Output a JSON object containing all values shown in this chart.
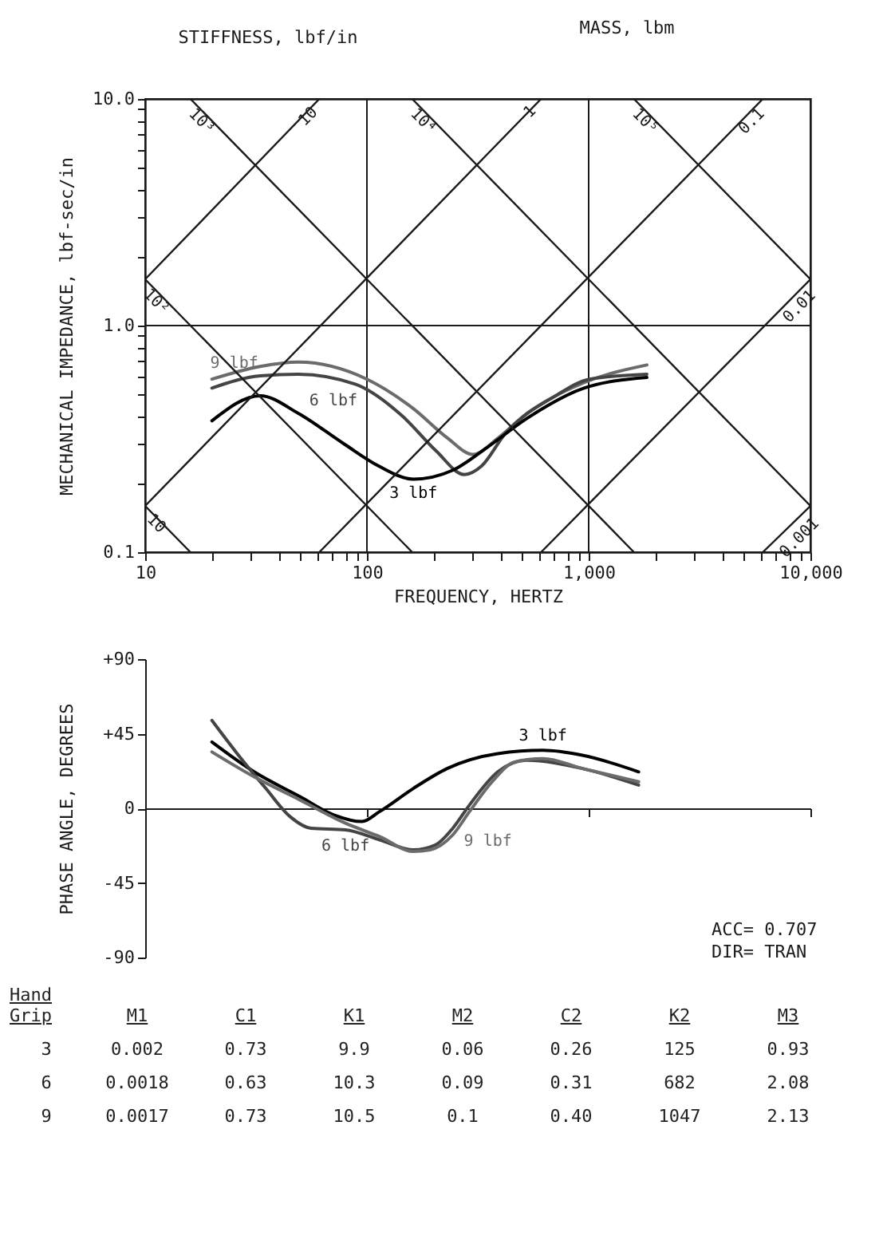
{
  "chart_data": [
    {
      "type": "line",
      "xlabel": "FREQUENCY, HERTZ",
      "ylabel": "MECHANICAL IMPEDANCE, lbf-sec/in",
      "log": "xy",
      "grid": true,
      "xlim": [
        10,
        10000
      ],
      "ylim": [
        0.1,
        10
      ],
      "xticks": [
        10,
        {
          "value": 20,
          "label": null
        },
        {
          "value": 30,
          "label": null
        },
        {
          "value": 40,
          "label": null
        },
        {
          "value": 50,
          "label": null
        },
        {
          "value": 60,
          "label": null
        },
        {
          "value": 70,
          "label": null
        },
        {
          "value": 80,
          "label": null
        },
        {
          "value": 90,
          "label": null
        },
        100,
        {
          "value": 200,
          "label": null
        },
        {
          "value": 300,
          "label": null
        },
        {
          "value": 400,
          "label": null
        },
        {
          "value": 500,
          "label": null
        },
        {
          "value": 600,
          "label": null
        },
        {
          "value": 700,
          "label": null
        },
        {
          "value": 800,
          "label": null
        },
        {
          "value": 900,
          "label": null
        },
        {
          "value": 1000,
          "label": "1,000"
        },
        {
          "value": 2000,
          "label": null
        },
        {
          "value": 3000,
          "label": null
        },
        {
          "value": 4000,
          "label": null
        },
        {
          "value": 5000,
          "label": null
        },
        {
          "value": 6000,
          "label": null
        },
        {
          "value": 7000,
          "label": null
        },
        {
          "value": 8000,
          "label": null
        },
        {
          "value": 9000,
          "label": null
        },
        {
          "value": 10000,
          "label": "10,000"
        }
      ],
      "yticks": [
        0.1,
        {
          "value": 0.2,
          "label": null
        },
        {
          "value": 0.3,
          "label": null
        },
        {
          "value": 0.4,
          "label": null
        },
        {
          "value": 0.5,
          "label": null
        },
        {
          "value": 0.6,
          "label": null
        },
        {
          "value": 0.7,
          "label": null
        },
        {
          "value": 0.8,
          "label": null
        },
        {
          "value": 0.9,
          "label": null
        },
        {
          "value": 1,
          "label": "1.0"
        },
        {
          "value": 2,
          "label": null
        },
        {
          "value": 3,
          "label": null
        },
        {
          "value": 4,
          "label": null
        },
        {
          "value": 5,
          "label": null
        },
        {
          "value": 6,
          "label": null
        },
        {
          "value": 7,
          "label": null
        },
        {
          "value": 8,
          "label": null
        },
        {
          "value": 9,
          "label": null
        },
        {
          "value": 10,
          "label": "10.0"
        }
      ],
      "annotations": [
        "STIFFNESS, lbf/in",
        "MASS, lbm"
      ],
      "series": [
        {
          "name": "9 lbf",
          "color": "#6b6b6b",
          "x": [
            20,
            33,
            49,
            100,
            162,
            230,
            301,
            392,
            528,
            953,
            1830
          ],
          "values": [
            0.58,
            0.66,
            0.69,
            0.58,
            0.43,
            0.32,
            0.27,
            0.32,
            0.41,
            0.56,
            0.67
          ]
        },
        {
          "name": "6 lbf",
          "color": "#444444",
          "x": [
            20,
            33,
            49,
            89,
            144,
            205,
            275,
            329,
            417,
            710,
            1010,
            1830
          ],
          "values": [
            0.53,
            0.6,
            0.61,
            0.55,
            0.4,
            0.28,
            0.22,
            0.24,
            0.33,
            0.49,
            0.58,
            0.61
          ]
        },
        {
          "name": "3 lbf",
          "color": "#000000",
          "x": [
            20,
            33,
            49,
            79,
            113,
            162,
            244,
            349,
            528,
            953,
            1830
          ],
          "values": [
            0.38,
            0.49,
            0.41,
            0.3,
            0.24,
            0.21,
            0.23,
            0.29,
            0.39,
            0.53,
            0.59
          ]
        },
        {
          "name": "10",
          "color": "#1a1a1a",
          "x": [
            10,
            16
          ],
          "values": [
            0.16,
            0.1
          ]
        },
        {
          "name": "10²",
          "color": "#1a1a1a",
          "x": [
            10,
            160
          ],
          "values": [
            1.6,
            0.1
          ]
        },
        {
          "name": "10³",
          "color": "#1a1a1a",
          "x": [
            16,
            1600
          ],
          "values": [
            10,
            0.1
          ]
        },
        {
          "name": "10⁴",
          "color": "#1a1a1a",
          "x": [
            160,
            10000
          ],
          "values": [
            10,
            0.16
          ]
        },
        {
          "name": "10⁵",
          "color": "#1a1a1a",
          "x": [
            1600,
            10000
          ],
          "values": [
            10,
            1.6
          ]
        },
        {
          "name": "10",
          "color": "#1a1a1a",
          "x": [
            10,
            61
          ],
          "values": [
            1.6,
            10
          ]
        },
        {
          "name": "1",
          "color": "#1a1a1a",
          "x": [
            10,
            610
          ],
          "values": [
            0.16,
            10
          ]
        },
        {
          "name": "0.1",
          "color": "#1a1a1a",
          "x": [
            61,
            6100
          ],
          "values": [
            0.1,
            10
          ]
        },
        {
          "name": "0.01",
          "color": "#1a1a1a",
          "x": [
            610,
            10000
          ],
          "values": [
            0.1,
            1.6
          ]
        },
        {
          "name": "0.001",
          "color": "#1a1a1a",
          "x": [
            6100,
            10000
          ],
          "values": [
            0.1,
            0.16
          ]
        }
      ]
    },
    {
      "type": "line",
      "ylabel": "PHASE ANGLE, DEGREES",
      "log": "x",
      "tick_labels": "y",
      "xlim": [
        10,
        10000
      ],
      "ylim": [
        -90,
        90
      ],
      "xticks": [
        {
          "value": 100,
          "label": null
        },
        {
          "value": 1000,
          "label": null
        },
        {
          "value": 10000,
          "label": null
        }
      ],
      "yticks": [
        {
          "value": 90,
          "label": "+90"
        },
        {
          "value": 45,
          "label": "+45"
        },
        0,
        -45,
        -90
      ],
      "annotations": [
        "ACC=  0.707",
        "DIR=  TRAN"
      ],
      "series": [
        {
          "name": "3 lbf",
          "color": "#000000",
          "x": [
            20,
            31,
            50,
            71,
            95,
            114,
            162,
            230,
            389,
            622,
            937,
            1680
          ],
          "values": [
            40,
            22,
            7,
            -4,
            -8,
            -2,
            12,
            24,
            33,
            35,
            32,
            22
          ]
        },
        {
          "name": "6 lbf",
          "color": "#444444",
          "x": [
            20,
            26,
            35,
            45,
            56,
            80,
            114,
            162,
            204,
            244,
            290,
            389,
            522,
            937,
            1680
          ],
          "values": [
            53,
            33,
            12,
            -5,
            -12,
            -13,
            -19,
            -25,
            -22,
            -12,
            2,
            22,
            29,
            24,
            14
          ]
        },
        {
          "name": "9 lbf",
          "color": "#6b6b6b",
          "x": [
            20,
            31,
            50,
            80,
            114,
            162,
            193,
            244,
            290,
            367,
            464,
            622,
            937,
            1680
          ],
          "values": [
            34,
            19,
            5,
            -9,
            -17,
            -26,
            -25,
            -16,
            -2,
            16,
            28,
            30,
            24,
            16
          ]
        }
      ]
    },
    {
      "type": "other",
      "ylabel": "Hand Grip",
      "categories": [
        "M1",
        "C1",
        "K1",
        "M2",
        "C2",
        "K2",
        "M3"
      ],
      "y_categories": [
        "3",
        "6",
        "9"
      ],
      "cell_labels": [
        [
          "0.002",
          "0.73",
          "9.9",
          "0.06",
          "0.26",
          "125",
          "0.93"
        ],
        [
          "0.0018",
          "0.63",
          "10.3",
          "0.09",
          "0.31",
          "682",
          "2.08"
        ],
        [
          "0.0017",
          "0.73",
          "10.5",
          "0.1",
          "0.40",
          "1047",
          "2.13"
        ]
      ]
    }
  ]
}
